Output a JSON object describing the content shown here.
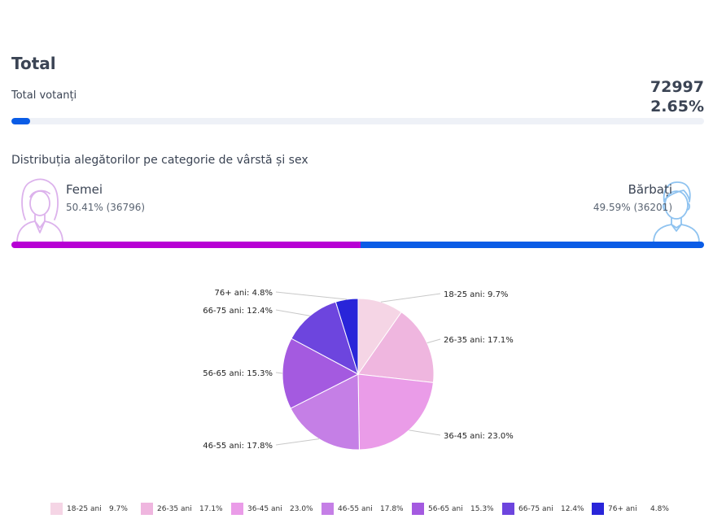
{
  "total": {
    "title": "Total",
    "label": "Total votanți",
    "count": "72997",
    "percent": "2.65%",
    "progress": 0.0265
  },
  "distribution": {
    "title": "Distribuția alegătorilor pe categorie de vârstă și sex",
    "female": {
      "label": "Femei",
      "stats": "50.41% (36796)",
      "share": 50.41,
      "color": "#b700d4"
    },
    "male": {
      "label": "Bărbați",
      "stats": "49.59% (36201)",
      "share": 49.59,
      "color": "#0a5ce6"
    }
  },
  "chart_data": {
    "type": "pie",
    "categories": [
      "18-25 ani",
      "26-35 ani",
      "36-45 ani",
      "46-55 ani",
      "56-65 ani",
      "66-75 ani",
      "76+ ani"
    ],
    "values": [
      9.7,
      17.1,
      23.0,
      17.8,
      15.3,
      12.4,
      4.8
    ],
    "labels": [
      "18-25 ani: 9.7%",
      "26-35 ani: 17.1%",
      "36-45 ani: 23.0%",
      "46-55 ani: 17.8%",
      "56-65 ani: 15.3%",
      "66-75 ani: 12.4%",
      "76+ ani: 4.8%"
    ],
    "legend_values": [
      "9.7%",
      "17.1%",
      "23.0%",
      "17.8%",
      "15.3%",
      "12.4%",
      "4.8%"
    ],
    "colors": [
      "#f5d5e5",
      "#efb6df",
      "#ea9ce8",
      "#c57fe6",
      "#a45ae0",
      "#6d45de",
      "#2925d9"
    ],
    "legend_position": "bottom",
    "unit": "%"
  }
}
